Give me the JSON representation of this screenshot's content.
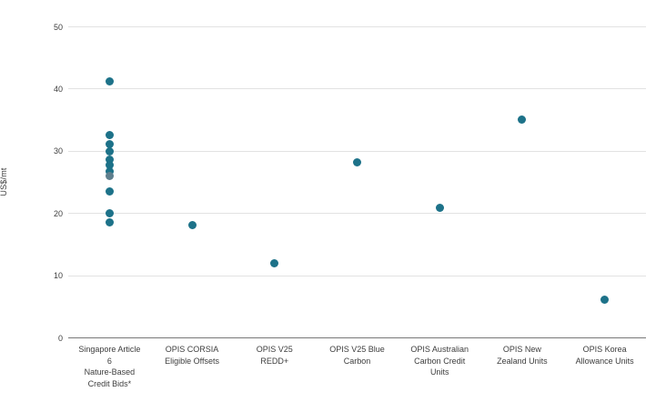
{
  "chart_data": {
    "type": "scatter",
    "title": "",
    "xlabel": "",
    "ylabel": "US$/mt",
    "ylim": [
      0,
      50
    ],
    "yticks": [
      0,
      10,
      20,
      30,
      40,
      50
    ],
    "grid": "horizontal-only",
    "legend_position": "none",
    "point_color": "#1d7289",
    "muted_point_color": "#5f7f8e",
    "categories": [
      "Singapore Article\n6\nNature-Based\nCredit Bids*",
      "OPIS CORSIA\nEligible Offsets",
      "OPIS V25\nREDD+",
      "OPIS V25 Blue\nCarbon",
      "OPIS Australian\nCarbon Credit\nUnits",
      "OPIS New\nZealand Units",
      "OPIS Korea\nAllowance Units"
    ],
    "points": [
      {
        "category_index": 0,
        "value": 41.1
      },
      {
        "category_index": 0,
        "value": 32.6
      },
      {
        "category_index": 0,
        "value": 31.1
      },
      {
        "category_index": 0,
        "value": 29.9
      },
      {
        "category_index": 0,
        "value": 28.6
      },
      {
        "category_index": 0,
        "value": 27.7
      },
      {
        "category_index": 0,
        "value": 26.7
      },
      {
        "category_index": 0,
        "value": 26.0,
        "muted": true
      },
      {
        "category_index": 0,
        "value": 23.4
      },
      {
        "category_index": 0,
        "value": 20.0
      },
      {
        "category_index": 0,
        "value": 18.5
      },
      {
        "category_index": 1,
        "value": 18.0
      },
      {
        "category_index": 2,
        "value": 11.9
      },
      {
        "category_index": 3,
        "value": 28.1
      },
      {
        "category_index": 4,
        "value": 20.9
      },
      {
        "category_index": 5,
        "value": 35.0
      },
      {
        "category_index": 6,
        "value": 6.0
      }
    ]
  }
}
